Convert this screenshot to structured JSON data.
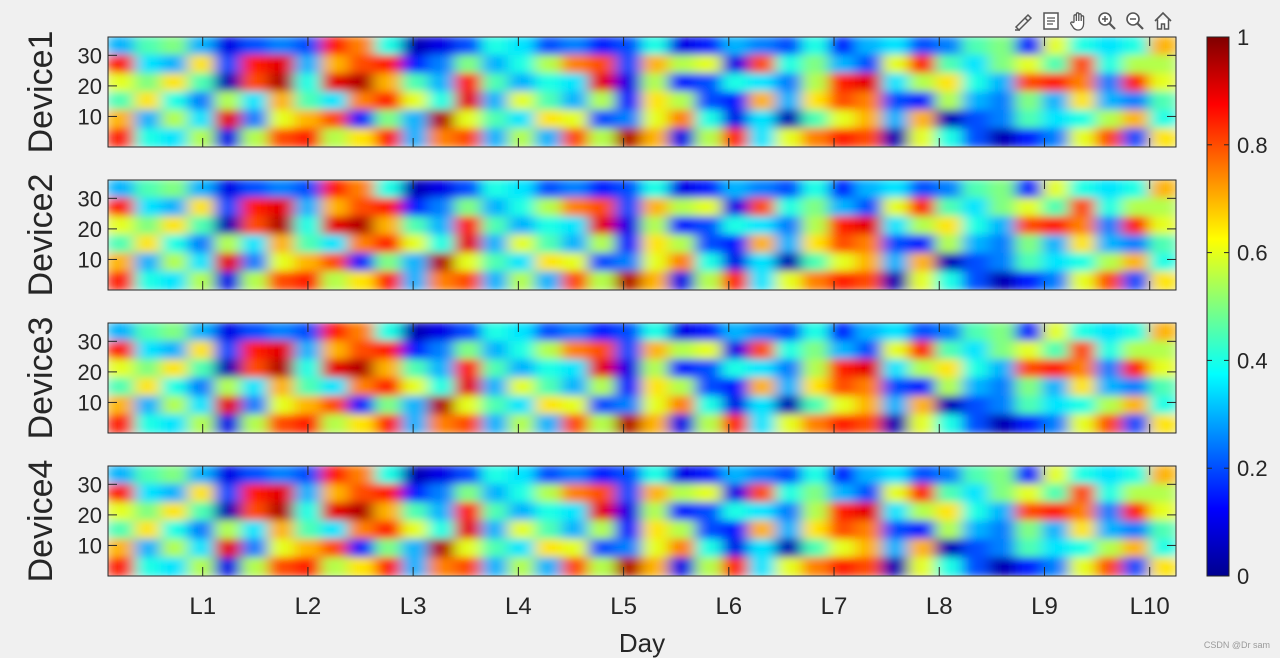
{
  "toolbar": {
    "buttons": [
      {
        "name": "brush-icon"
      },
      {
        "name": "datatip-icon"
      },
      {
        "name": "pan-hand-icon"
      },
      {
        "name": "zoom-in-icon"
      },
      {
        "name": "zoom-out-icon"
      },
      {
        "name": "home-icon"
      }
    ]
  },
  "watermark": "CSDN @Dr sam",
  "chart_data": {
    "type": "heatmap",
    "xlabel": "Day",
    "x_ticks": [
      "L1",
      "L2",
      "L3",
      "L4",
      "L5",
      "L6",
      "L7",
      "L8",
      "L9",
      "L10"
    ],
    "xlim": [
      0.1,
      10.25
    ],
    "y_ticks": [
      10,
      20,
      30
    ],
    "ylim": [
      0,
      36
    ],
    "colormap": "jet",
    "clim": [
      0,
      1
    ],
    "colorbar_ticks": [
      0,
      0.2,
      0.4,
      0.6,
      0.8,
      1
    ],
    "colorbar_labels": [
      "0",
      "0.2",
      "0.4",
      "0.6",
      "0.8",
      "1"
    ],
    "grid": "6 rows x 40 columns per panel, bicubic-smoothed",
    "panels": [
      {
        "ylabel": "Device1"
      },
      {
        "ylabel": "Device2"
      },
      {
        "ylabel": "Device3"
      },
      {
        "ylabel": "Device4"
      }
    ],
    "z": [
      [
        0.3,
        0.45,
        0.5,
        0.3,
        0.1,
        0.2,
        0.25,
        0.2,
        0.85,
        0.75,
        0.4,
        0.05,
        0.1,
        0.2,
        0.4,
        0.35,
        0.2,
        0.25,
        0.15,
        0.2,
        0.4,
        0.1,
        0.15,
        0.3,
        0.25,
        0.2,
        0.4,
        0.15,
        0.3,
        0.35,
        0.2,
        0.25,
        0.45,
        0.5,
        0.15,
        0.6,
        0.4,
        0.35,
        0.4,
        0.7
      ],
      [
        0.85,
        0.35,
        0.3,
        0.65,
        0.2,
        0.85,
        0.9,
        0.3,
        0.7,
        0.8,
        0.85,
        0.15,
        0.25,
        0.5,
        0.3,
        0.4,
        0.55,
        0.75,
        0.8,
        0.2,
        0.7,
        0.55,
        0.6,
        0.1,
        0.8,
        0.4,
        0.5,
        0.3,
        0.2,
        0.6,
        0.85,
        0.45,
        0.35,
        0.5,
        0.6,
        0.45,
        0.8,
        0.4,
        0.55,
        0.55
      ],
      [
        0.6,
        0.5,
        0.65,
        0.45,
        0.05,
        0.8,
        0.95,
        0.4,
        0.9,
        0.95,
        0.7,
        0.45,
        0.3,
        0.85,
        0.45,
        0.3,
        0.4,
        0.35,
        0.9,
        0.1,
        0.55,
        0.15,
        0.2,
        0.4,
        0.35,
        0.25,
        0.55,
        0.85,
        0.9,
        0.35,
        0.55,
        0.65,
        0.4,
        0.3,
        0.8,
        0.85,
        0.75,
        0.25,
        0.85,
        0.6
      ],
      [
        0.45,
        0.65,
        0.4,
        0.25,
        0.55,
        0.35,
        0.7,
        0.45,
        0.35,
        0.75,
        0.85,
        0.6,
        0.4,
        0.9,
        0.3,
        0.6,
        0.45,
        0.3,
        0.55,
        0.15,
        0.65,
        0.55,
        0.2,
        0.15,
        0.7,
        0.3,
        0.65,
        0.8,
        0.75,
        0.2,
        0.15,
        0.55,
        0.3,
        0.25,
        0.5,
        0.3,
        0.65,
        0.3,
        0.25,
        0.45
      ],
      [
        0.7,
        0.3,
        0.55,
        0.35,
        0.9,
        0.25,
        0.6,
        0.7,
        0.8,
        0.15,
        0.5,
        0.3,
        0.95,
        0.6,
        0.45,
        0.35,
        0.65,
        0.6,
        0.2,
        0.25,
        0.6,
        0.75,
        0.4,
        0.1,
        0.35,
        0.05,
        0.45,
        0.6,
        0.7,
        0.3,
        0.7,
        0.05,
        0.2,
        0.25,
        0.45,
        0.35,
        0.4,
        0.55,
        0.7,
        0.4
      ],
      [
        0.85,
        0.4,
        0.35,
        0.55,
        0.1,
        0.55,
        0.8,
        0.85,
        0.55,
        0.65,
        0.85,
        0.3,
        0.75,
        0.8,
        0.3,
        0.55,
        0.3,
        0.8,
        0.55,
        0.95,
        0.7,
        0.1,
        0.55,
        0.85,
        0.35,
        0.6,
        0.75,
        0.85,
        0.8,
        0.05,
        0.6,
        0.4,
        0.2,
        0.05,
        0.15,
        0.25,
        0.6,
        0.8,
        0.2,
        0.65
      ]
    ]
  }
}
